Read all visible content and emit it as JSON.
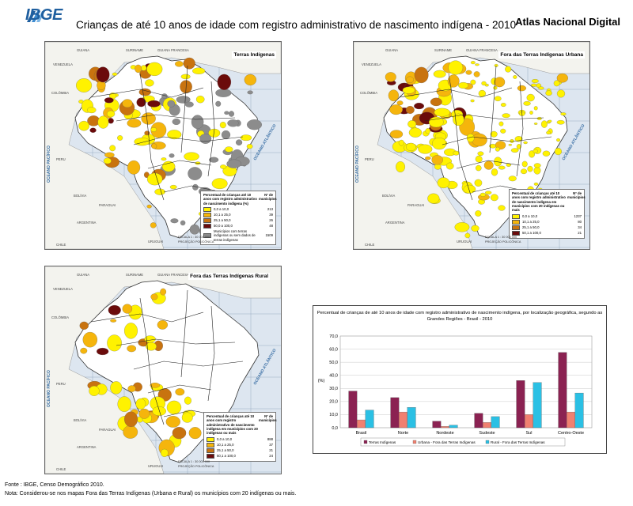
{
  "header": {
    "logo_text": "IBGE",
    "title": "Crianças de até 10 anos de idade com registro administrativo de nascimento indígena - 2010",
    "atlas": "Atlas Nacional Digital"
  },
  "colors": {
    "class1": "#fff200",
    "class2": "#f5b50c",
    "class3": "#c8730f",
    "class4": "#6b0b0b",
    "no_data": "#8c8c8c",
    "land": "#ffffff",
    "ocean": "#dde6f0",
    "chart_terras": "#8b2252",
    "chart_urbana": "#f08070",
    "chart_rural": "#2bc0e4"
  },
  "maps": [
    {
      "title": "Terras Indígenas",
      "legend": {
        "heading": "Percentual de crianças até 10 anos com registro administrativo de nascimento indígena (%)",
        "count_label": "Nº de municípios",
        "classes": [
          {
            "label": "0,0 a 10,0",
            "count": "213",
            "color": "#fff200"
          },
          {
            "label": "10,1 a 25,0",
            "count": "39",
            "color": "#f5b50c"
          },
          {
            "label": "25,1 a 50,0",
            "count": "26",
            "color": "#c8730f"
          },
          {
            "label": "50,0 a 100,0",
            "count": "48",
            "color": "#6b0b0b"
          },
          {
            "label": "Municípios com terras indígenas ou sem dados de terras indígenas",
            "count": "1509",
            "color": "#8c8c8c"
          }
        ]
      },
      "scale": "ESCALA 1 : 30 000 000",
      "projection": "PROJEÇÃO POLICÔNICA"
    },
    {
      "title": "Fora das Terras Indígenas Urbana",
      "legend": {
        "heading": "Percentual de crianças até 10 anos com registro administrativo de nascimento indígena em municípios com 20 indígenas ou mais",
        "count_label": "Nº de municípios",
        "classes": [
          {
            "label": "0,0 a 10,0",
            "count": "1237",
            "color": "#fff200"
          },
          {
            "label": "10,1 a 25,0",
            "count": "80",
            "color": "#f5b50c"
          },
          {
            "label": "25,1 a 50,0",
            "count": "34",
            "color": "#c8730f"
          },
          {
            "label": "50,1 a 100,0",
            "count": "21",
            "color": "#6b0b0b"
          }
        ]
      },
      "scale": "ESCALA 1 : 30 000 000",
      "projection": "PROJEÇÃO POLICÔNICA"
    },
    {
      "title": "Fora das Terras Indígenas Rural",
      "legend": {
        "heading": "Percentual de crianças até 10 anos com registro administrativo de nascimento indígena em municípios com 20 indígenas ou mais",
        "count_label": "Nº de municípios",
        "classes": [
          {
            "label": "0,0 a 10,0",
            "count": "888",
            "color": "#fff200"
          },
          {
            "label": "10,1 a 25,0",
            "count": "37",
            "color": "#f5b50c"
          },
          {
            "label": "25,1 a 50,0",
            "count": "21",
            "color": "#c8730f"
          },
          {
            "label": "50,1 a 100,0",
            "count": "24",
            "color": "#6b0b0b"
          }
        ]
      },
      "scale": "ESCALA 1 : 30 000 000",
      "projection": "PROJEÇÃO POLICÔNICA"
    }
  ],
  "map_labels": {
    "countries": [
      "GUIANA",
      "SURINAME",
      "GUIANA FRANCESA",
      "VENEZUELA",
      "COLÔMBIA",
      "PERU",
      "BOLÍVIA",
      "PARAGUAI",
      "ARGENTINA",
      "CHILE",
      "URUGUAI"
    ],
    "oceans": [
      "OCEANO PACÍFICO",
      "OCEANO ATLÂNTICO"
    ]
  },
  "chart_data": {
    "type": "bar",
    "title": "Percentual de crianças de até 10 anos de idade com registro administrativo de nascimento indígena, por localização geográfica, segundo as Grandes Regiões - Brasil - 2010",
    "ylabel": "(%)",
    "xlabel": "",
    "ylim": [
      0,
      70
    ],
    "yticks": [
      "0,0",
      "10,0",
      "20,0",
      "30,0",
      "40,0",
      "50,0",
      "60,0",
      "70,0"
    ],
    "grid": true,
    "legend_position": "bottom",
    "categories": [
      "Brasil",
      "Norte",
      "Nordeste",
      "Sudeste",
      "Sul",
      "Centro-Oeste"
    ],
    "series": [
      {
        "name": "Terras Indígenas",
        "values": [
          28.0,
          23.0,
          5.0,
          11.0,
          36.0,
          57.5
        ]
      },
      {
        "name": "Urbana - Fora das Terras Indígenas",
        "values": [
          6.0,
          12.0,
          1.0,
          4.0,
          10.0,
          12.0
        ]
      },
      {
        "name": "Rural - Fora das Terras Indígenas",
        "values": [
          13.5,
          15.5,
          2.0,
          8.5,
          34.5,
          26.5
        ]
      }
    ]
  },
  "footer": {
    "source": "Fonte : IBGE, Censo Demográfico 2010.",
    "note": "Nota: Considerou-se nos mapas Fora das Terras Indígenas (Urbana e Rural) os municípios com 20 indígenas ou mais."
  }
}
